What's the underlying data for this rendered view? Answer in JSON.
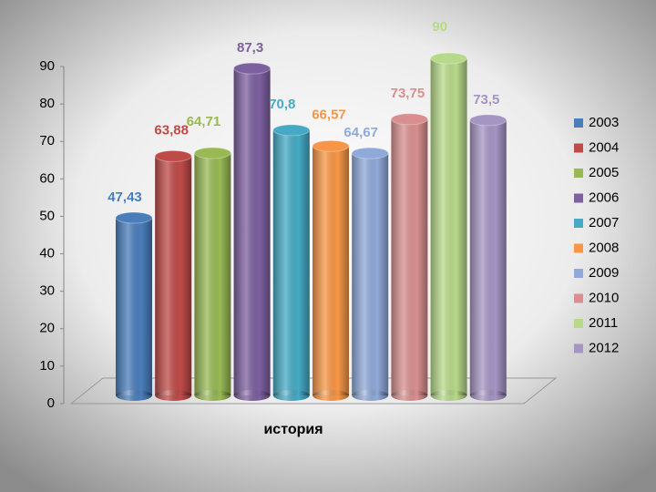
{
  "chart_data": {
    "type": "bar",
    "categories": [
      "история"
    ],
    "series": [
      {
        "name": "2003",
        "color": "#4a7ebb",
        "values": [
          47.43
        ],
        "value_labels": [
          "47,43"
        ]
      },
      {
        "name": "2004",
        "color": "#be4b48",
        "values": [
          63.88
        ],
        "value_labels": [
          "63,88"
        ]
      },
      {
        "name": "2005",
        "color": "#98b954",
        "values": [
          64.71
        ],
        "value_labels": [
          "64,71"
        ]
      },
      {
        "name": "2006",
        "color": "#7d60a0",
        "values": [
          87.3
        ],
        "value_labels": [
          "87,3"
        ]
      },
      {
        "name": "2007",
        "color": "#46aac5",
        "values": [
          70.8
        ],
        "value_labels": [
          "70,8"
        ]
      },
      {
        "name": "2008",
        "color": "#f79646",
        "values": [
          66.57
        ],
        "value_labels": [
          "66,57"
        ]
      },
      {
        "name": "2009",
        "color": "#8fa9d8",
        "values": [
          64.67
        ],
        "value_labels": [
          "64,67"
        ]
      },
      {
        "name": "2010",
        "color": "#d98f8f",
        "values": [
          73.75
        ],
        "value_labels": [
          "73,75"
        ]
      },
      {
        "name": "2011",
        "color": "#b7d98a",
        "values": [
          90
        ],
        "value_labels": [
          "90"
        ]
      },
      {
        "name": "2012",
        "color": "#a595c4",
        "values": [
          73.5
        ],
        "value_labels": [
          "73,5"
        ]
      }
    ],
    "ylim": [
      0,
      90
    ],
    "yticks": [
      0,
      10,
      20,
      30,
      40,
      50,
      60,
      70,
      80,
      90
    ],
    "legend": "right"
  }
}
